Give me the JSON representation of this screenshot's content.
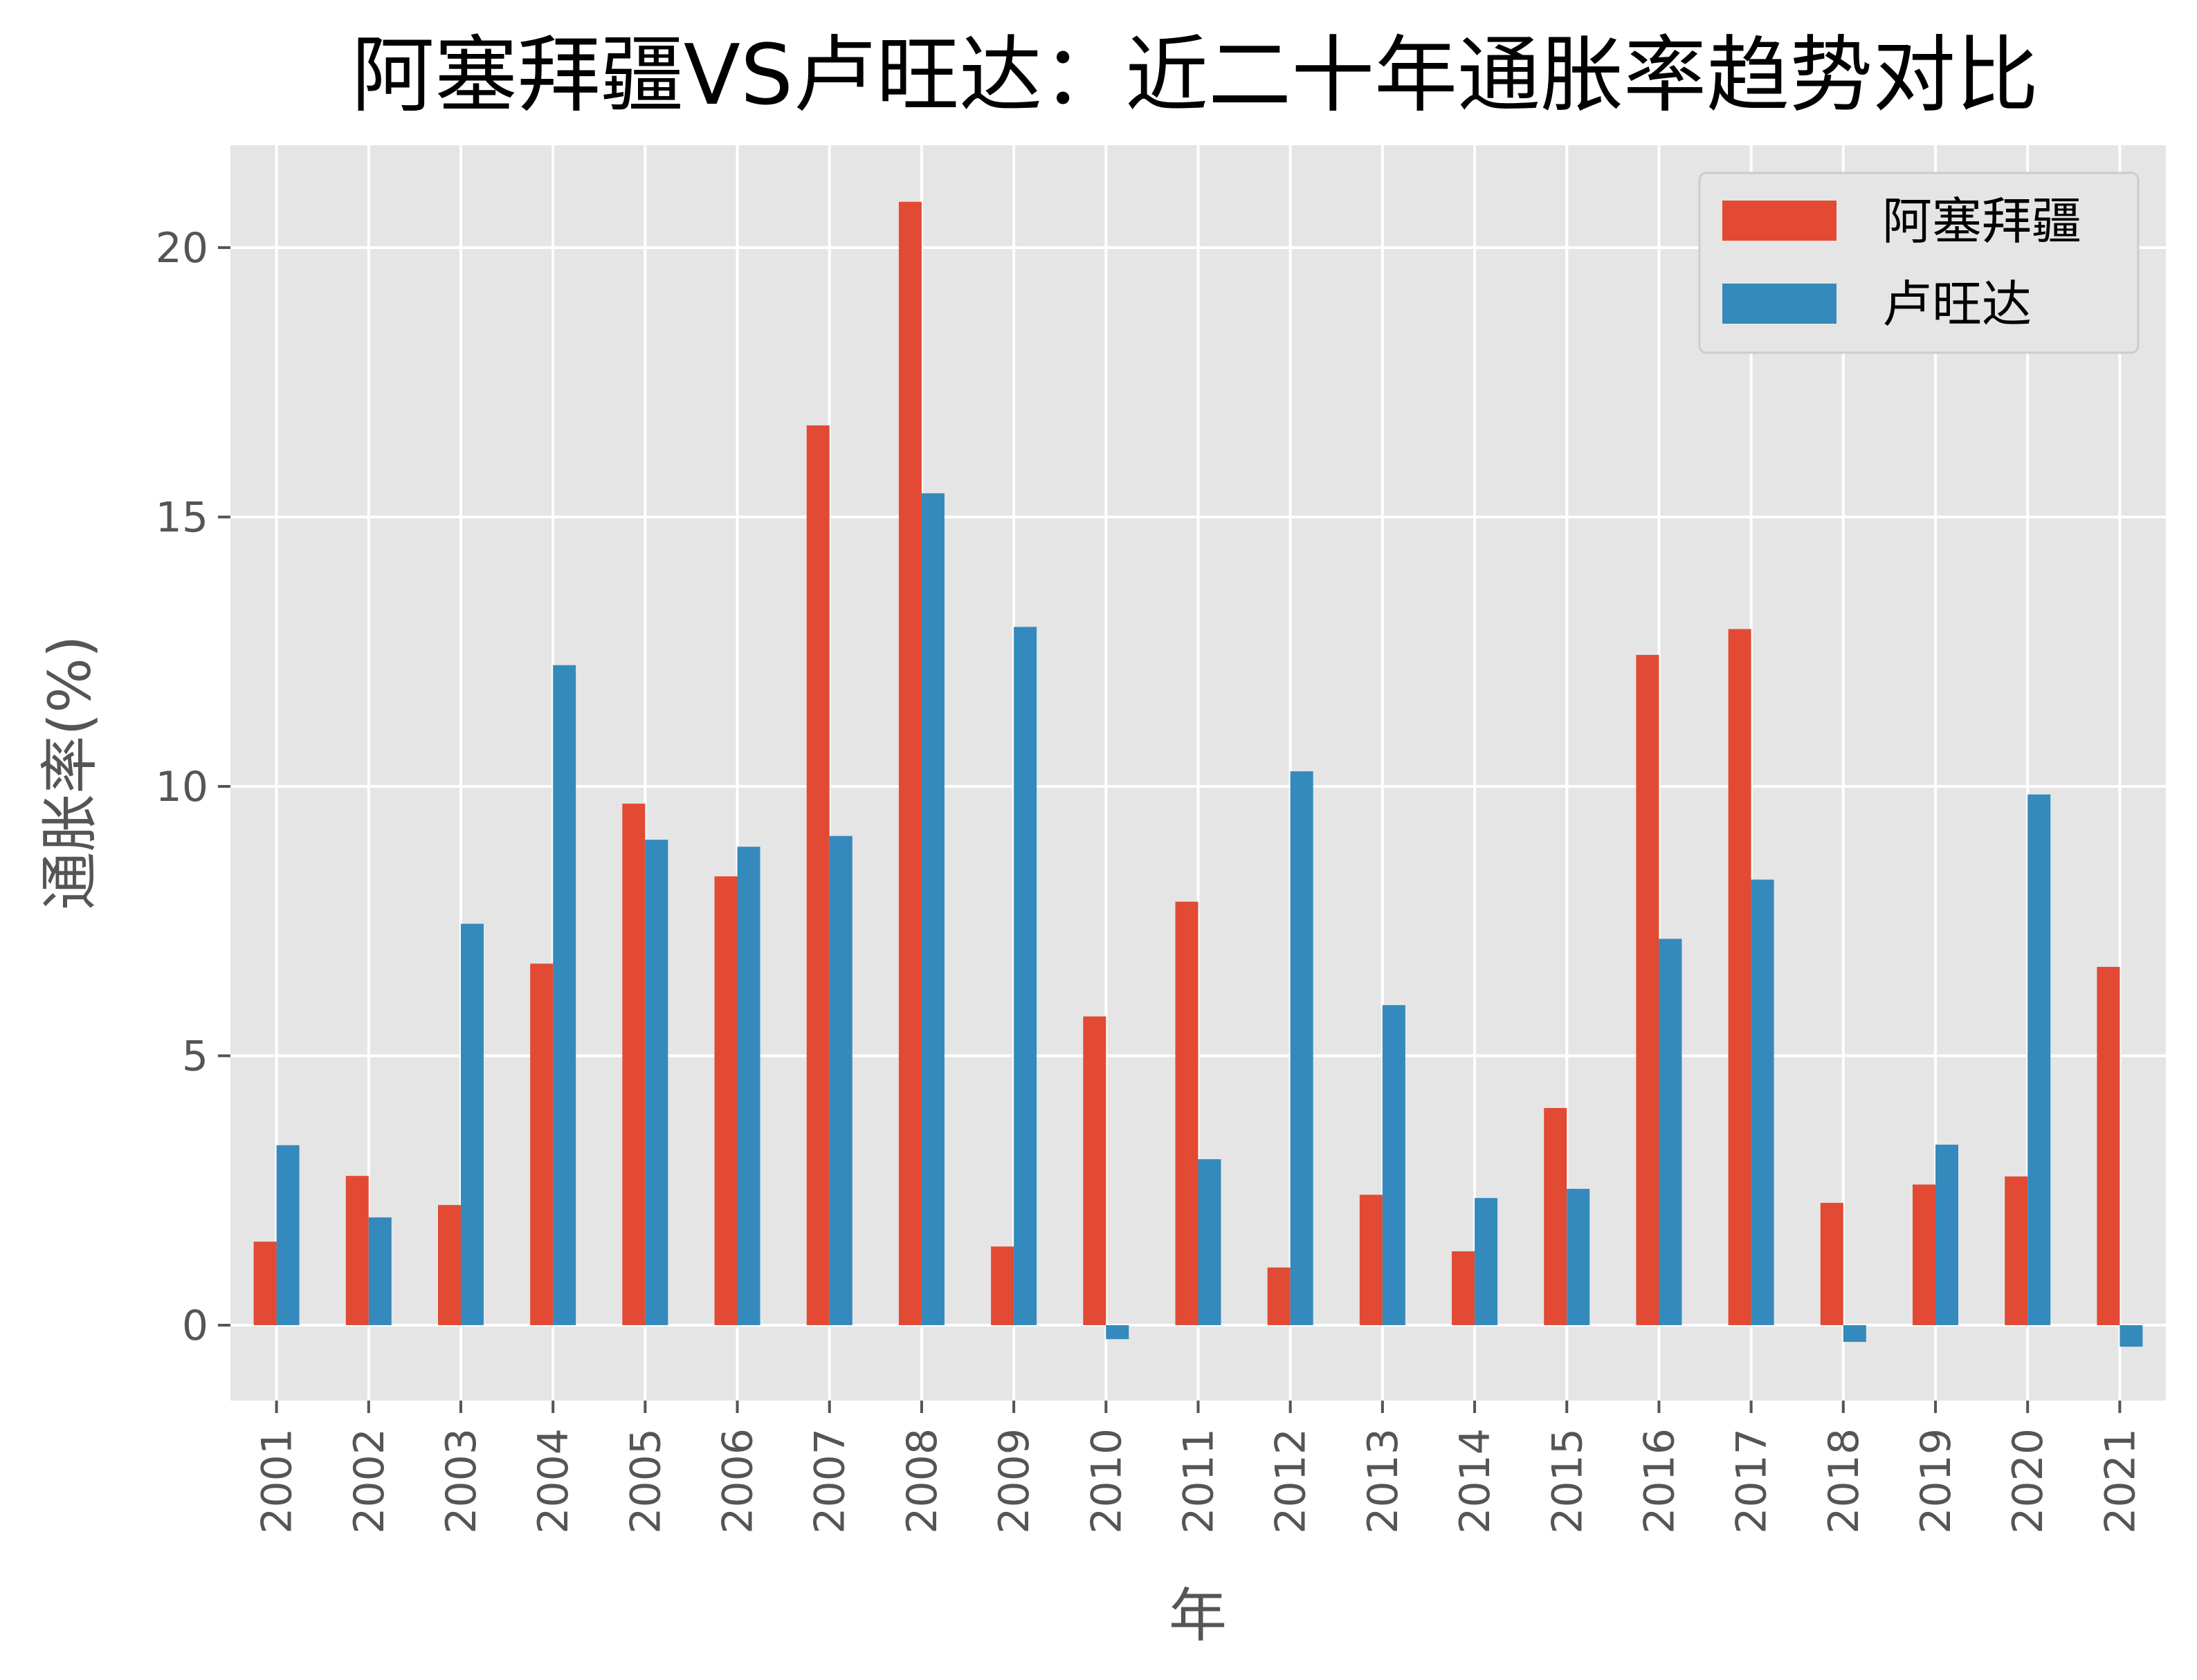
{
  "chart_data": {
    "type": "bar",
    "title": "阿塞拜疆VS卢旺达：近二十年通胀率趋势对比",
    "xlabel": "年",
    "ylabel": "通胀率(%)",
    "categories": [
      "2001",
      "2002",
      "2003",
      "2004",
      "2005",
      "2006",
      "2007",
      "2008",
      "2009",
      "2010",
      "2011",
      "2012",
      "2013",
      "2014",
      "2015",
      "2016",
      "2017",
      "2018",
      "2019",
      "2020",
      "2021"
    ],
    "series": [
      {
        "name": "阿塞拜疆",
        "color": "#E24A33",
        "values": [
          1.55,
          2.77,
          2.23,
          6.71,
          9.68,
          8.33,
          16.7,
          20.85,
          1.46,
          5.73,
          7.86,
          1.07,
          2.42,
          1.37,
          4.03,
          12.44,
          12.92,
          2.27,
          2.61,
          2.76,
          6.65
        ]
      },
      {
        "name": "卢旺达",
        "color": "#348ABD",
        "values": [
          3.34,
          2.0,
          7.45,
          12.25,
          9.01,
          8.88,
          9.08,
          15.44,
          12.96,
          -0.26,
          3.08,
          10.28,
          5.94,
          2.36,
          2.53,
          7.17,
          8.27,
          -0.31,
          3.35,
          9.85,
          -0.4
        ]
      }
    ],
    "yticks": [
      0,
      5,
      10,
      15,
      20
    ],
    "ylim": [
      -1.4,
      21.9
    ],
    "grid": true,
    "legend_position": "upper right",
    "background_color": "#E5E5E5",
    "grid_color": "#FFFFFF"
  }
}
